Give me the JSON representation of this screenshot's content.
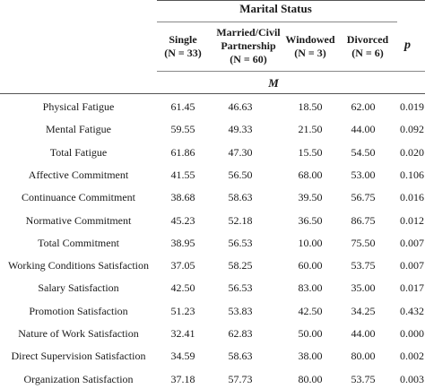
{
  "table": {
    "group_title": "Marital Status",
    "m_label": "M",
    "p_label": "p",
    "columns": [
      {
        "line1": "Single",
        "line2": "(N = 33)",
        "line3": ""
      },
      {
        "line1": "Married/Civil",
        "line2": "Partnership",
        "line3": "(N = 60)"
      },
      {
        "line1": "Windowed",
        "line2": "(N = 3)",
        "line3": ""
      },
      {
        "line1": "Divorced",
        "line2": "(N = 6)",
        "line3": ""
      }
    ],
    "rows": [
      {
        "label": "Physical Fatigue",
        "values": [
          "61.45",
          "46.63",
          "18.50",
          "62.00"
        ],
        "p": "0.019"
      },
      {
        "label": "Mental Fatigue",
        "values": [
          "59.55",
          "49.33",
          "21.50",
          "44.00"
        ],
        "p": "0.092"
      },
      {
        "label": "Total Fatigue",
        "values": [
          "61.86",
          "47.30",
          "15.50",
          "54.50"
        ],
        "p": "0.020"
      },
      {
        "label": "Affective Commitment",
        "values": [
          "41.55",
          "56.50",
          "68.00",
          "53.00"
        ],
        "p": "0.106"
      },
      {
        "label": "Continuance Commitment",
        "values": [
          "38.68",
          "58.63",
          "39.50",
          "56.75"
        ],
        "p": "0.016"
      },
      {
        "label": "Normative Commitment",
        "values": [
          "45.23",
          "52.18",
          "36.50",
          "86.75"
        ],
        "p": "0.012"
      },
      {
        "label": "Total Commitment",
        "values": [
          "38.95",
          "56.53",
          "10.00",
          "75.50"
        ],
        "p": "0.007"
      },
      {
        "label": "Working Conditions Satisfaction",
        "values": [
          "37.05",
          "58.25",
          "60.00",
          "53.75"
        ],
        "p": "0.007"
      },
      {
        "label": "Salary Satisfaction",
        "values": [
          "42.50",
          "56.53",
          "83.00",
          "35.00"
        ],
        "p": "0.017"
      },
      {
        "label": "Promotion Satisfaction",
        "values": [
          "51.23",
          "53.83",
          "42.50",
          "34.25"
        ],
        "p": "0.432"
      },
      {
        "label": "Nature of Work Satisfaction",
        "values": [
          "32.41",
          "62.83",
          "50.00",
          "44.00"
        ],
        "p": "0.000"
      },
      {
        "label": "Direct Supervision Satisfaction",
        "values": [
          "34.59",
          "58.63",
          "38.00",
          "80.00"
        ],
        "p": "0.002"
      },
      {
        "label": "Organization Satisfaction",
        "values": [
          "37.18",
          "57.73",
          "80.00",
          "53.75"
        ],
        "p": "0.003"
      }
    ]
  }
}
